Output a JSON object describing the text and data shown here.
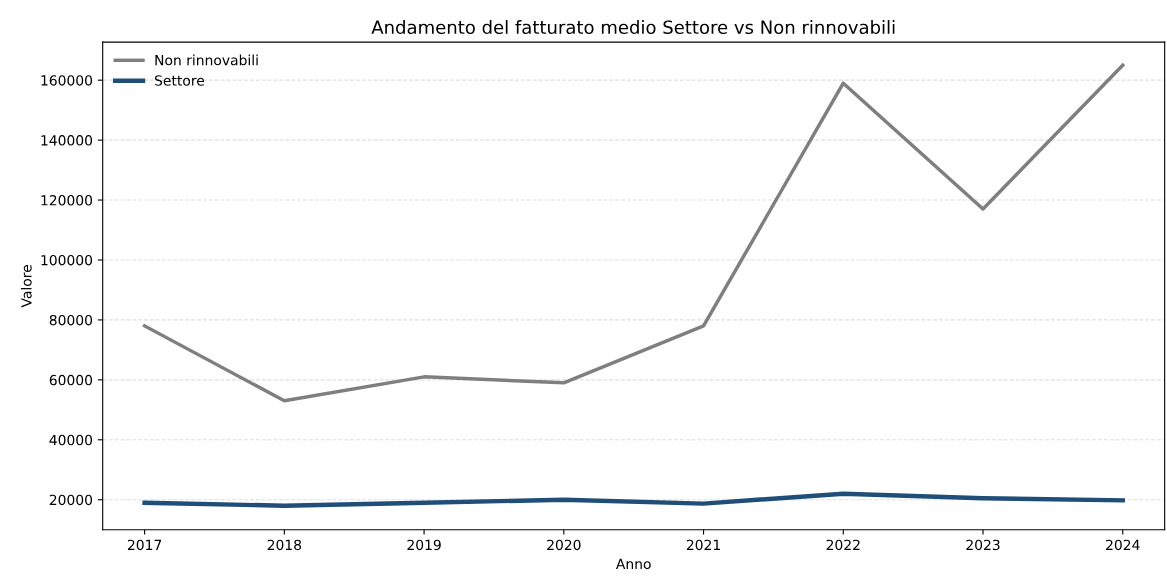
{
  "chart_data": {
    "type": "line",
    "title": "Andamento del fatturato medio Settore vs Non rinnovabili",
    "xlabel": "Anno",
    "ylabel": "Valore",
    "x": [
      2017,
      2018,
      2019,
      2020,
      2021,
      2022,
      2023,
      2024
    ],
    "series": [
      {
        "name": "Non rinnovabili",
        "color": "#7f7f7f",
        "values": [
          78000,
          53000,
          61000,
          59000,
          78000,
          159000,
          117000,
          165000
        ]
      },
      {
        "name": "Settore",
        "color": "#1f4e79",
        "values": [
          19000,
          18000,
          19000,
          20000,
          18700,
          22000,
          20500,
          19800
        ]
      }
    ],
    "xlim": [
      2016.7,
      2024.3
    ],
    "xticks": [
      2017,
      2018,
      2019,
      2020,
      2021,
      2022,
      2023,
      2024
    ],
    "ylim": [
      10000,
      172700
    ],
    "yticks": [
      20000,
      40000,
      60000,
      80000,
      100000,
      120000,
      140000,
      160000
    ],
    "grid": "y",
    "legend": "top left",
    "line_style": "solid",
    "marker": "none"
  }
}
